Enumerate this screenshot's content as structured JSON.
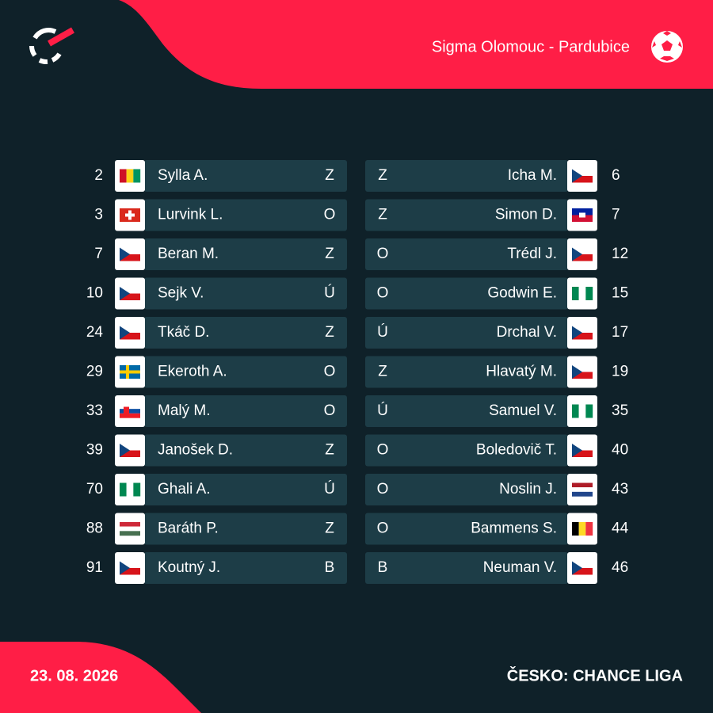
{
  "header": {
    "match": "Sigma Olomouc - Pardubice"
  },
  "home": {
    "players": [
      {
        "number": 2,
        "name": "Sylla A.",
        "position": "Z"
      },
      {
        "number": 3,
        "name": "Lurvink L.",
        "position": "O"
      },
      {
        "number": 7,
        "name": "Beran M.",
        "position": "Z"
      },
      {
        "number": 10,
        "name": "Sejk V.",
        "position": "Ú"
      },
      {
        "number": 24,
        "name": "Tkáč D.",
        "position": "Z"
      },
      {
        "number": 29,
        "name": "Ekeroth A.",
        "position": "O"
      },
      {
        "number": 33,
        "name": "Malý M.",
        "position": "O"
      },
      {
        "number": 39,
        "name": "Janošek D.",
        "position": "Z"
      },
      {
        "number": 70,
        "name": "Ghali A.",
        "position": "Ú"
      },
      {
        "number": 88,
        "name": "Baráth P.",
        "position": "Z"
      },
      {
        "number": 91,
        "name": "Koutný J.",
        "position": "B"
      }
    ]
  },
  "away": {
    "players": [
      {
        "number": 6,
        "name": "Icha M.",
        "position": "Z"
      },
      {
        "number": 7,
        "name": "Simon D.",
        "position": "Z"
      },
      {
        "number": 12,
        "name": "Trédl J.",
        "position": "O"
      },
      {
        "number": 15,
        "name": "Godwin E.",
        "position": "O"
      },
      {
        "number": 17,
        "name": "Drchal V.",
        "position": "Ú"
      },
      {
        "number": 19,
        "name": "Hlavatý M.",
        "position": "Z"
      },
      {
        "number": 35,
        "name": "Samuel V.",
        "position": "Ú"
      },
      {
        "number": 40,
        "name": "Boledovič T.",
        "position": "O"
      },
      {
        "number": 43,
        "name": "Noslin J.",
        "position": "O"
      },
      {
        "number": 44,
        "name": "Bammens S.",
        "position": "O"
      },
      {
        "number": 46,
        "name": "Neuman V.",
        "position": "B"
      }
    ]
  },
  "footer": {
    "date": "23. 08. 2026",
    "league": "ČESKO: CHANCE LIGA"
  }
}
